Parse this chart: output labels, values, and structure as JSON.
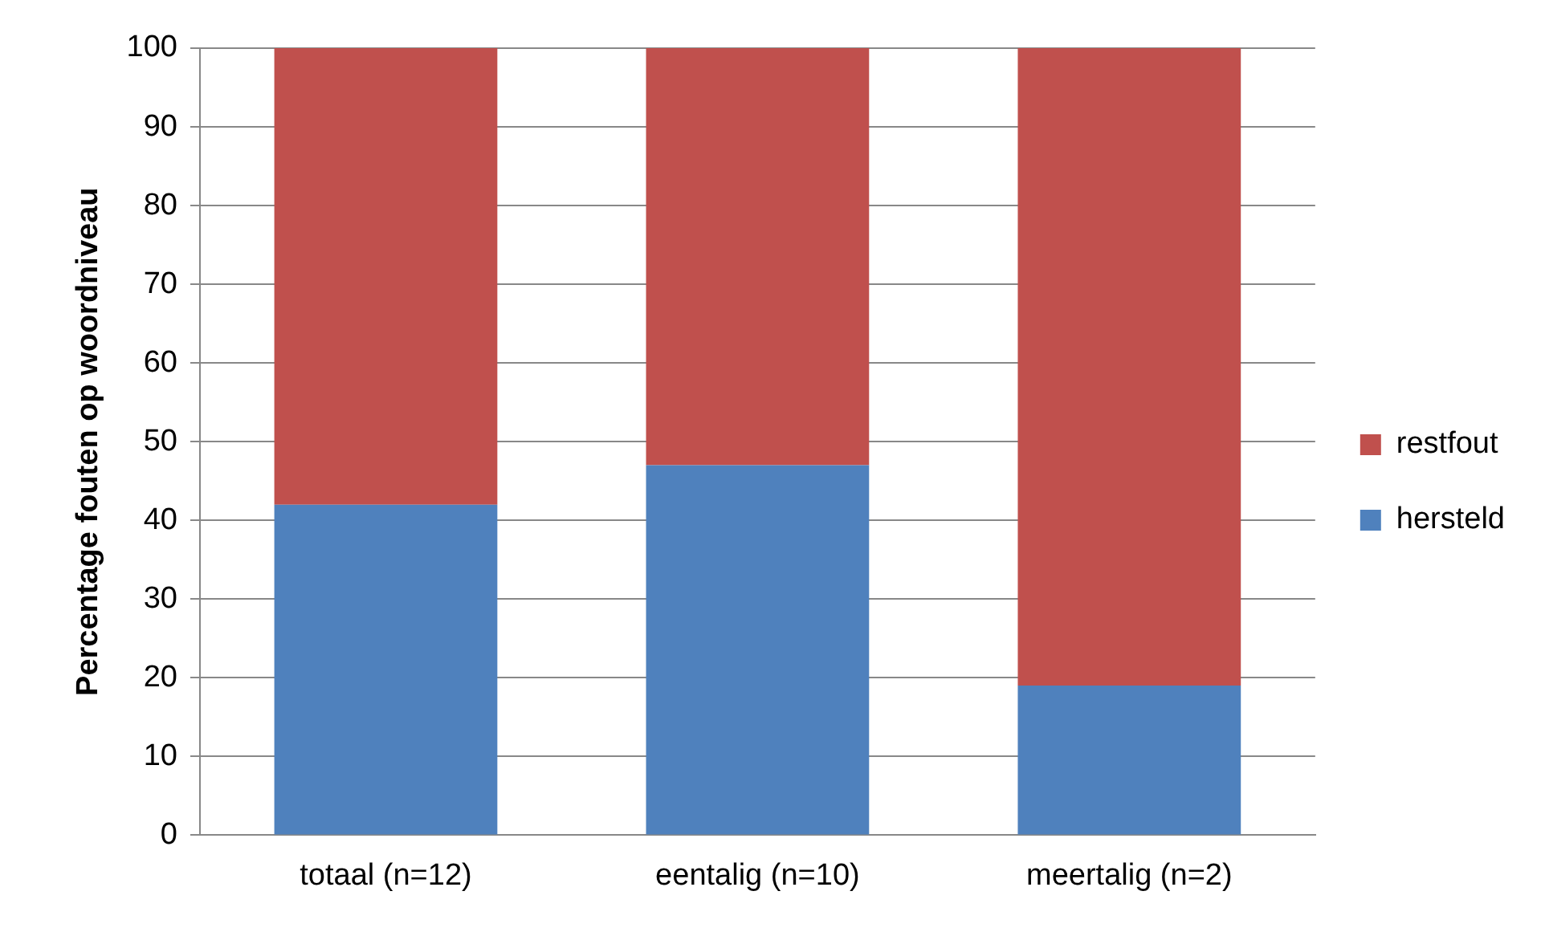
{
  "chart_data": {
    "type": "bar",
    "stacked": true,
    "ylabel": "Percentage fouten op woordniveau",
    "categories": [
      "totaal (n=12)",
      "eentalig (n=10)",
      "meertalig (n=2)"
    ],
    "series": [
      {
        "name": "hersteld",
        "color": "#4f81bd",
        "values": [
          42,
          47,
          19
        ]
      },
      {
        "name": "restfout",
        "color": "#c0504d",
        "values": [
          58,
          53,
          81
        ]
      }
    ],
    "ylim": [
      0,
      100
    ],
    "yticks": [
      0,
      10,
      20,
      30,
      40,
      50,
      60,
      70,
      80,
      90,
      100
    ],
    "grid": "y",
    "legend": "right"
  }
}
